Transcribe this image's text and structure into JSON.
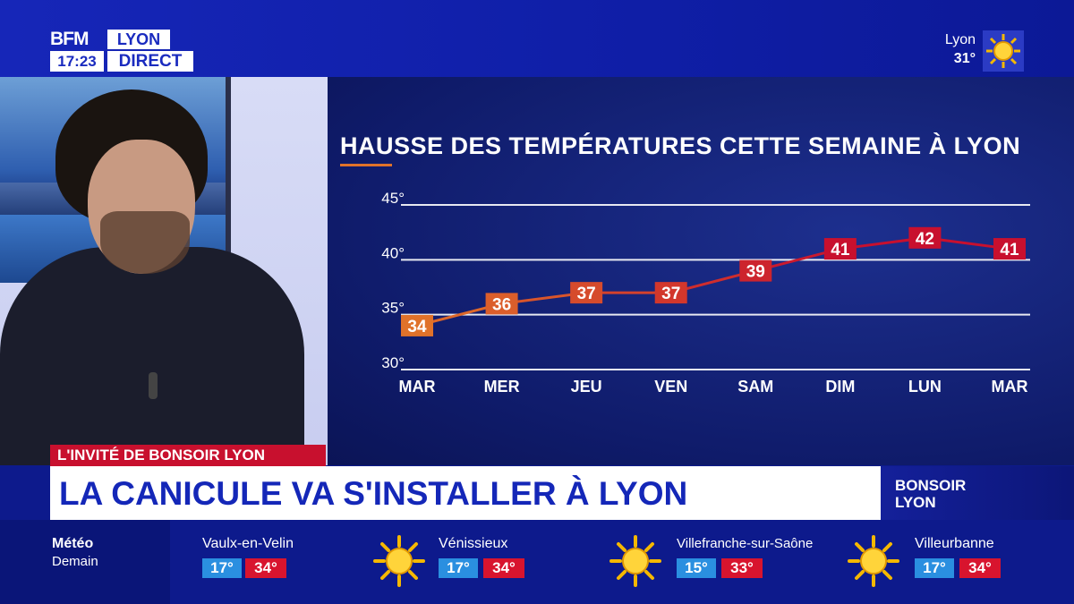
{
  "channel": {
    "brand": "BFM",
    "region": "LYON",
    "time": "17:23",
    "status": "DIRECT"
  },
  "top_weather": {
    "city": "Lyon",
    "temp": "31°",
    "icon": "sun-icon"
  },
  "lower_third": {
    "tag": "L'INVITÉ DE BONSOIR LYON",
    "headline": "LA CANICULE VA S'INSTALLER À LYON",
    "show_line1": "BONSOIR",
    "show_line2": "LYON"
  },
  "ticker": {
    "label_title": "Météo",
    "label_sub": "Demain",
    "items": [
      {
        "city": "Vaulx-en-Velin",
        "min": "17°",
        "max": "34°",
        "icon": "sun-icon"
      },
      {
        "city": "Vénissieux",
        "min": "17°",
        "max": "34°",
        "icon": "sun-icon"
      },
      {
        "city": "Villefranche-sur-Saône",
        "min": "15°",
        "max": "33°",
        "icon": "sun-icon"
      },
      {
        "city": "Villeurbanne",
        "min": "17°",
        "max": "34°",
        "icon": "sun-icon"
      }
    ]
  },
  "colors": {
    "background_blue": "#0d1a8c",
    "headline_blue": "#1427b8",
    "tag_red": "#c8102e",
    "min_temp_blue": "#2a8fe0",
    "max_temp_red": "#d8142e",
    "line_orange": "#e0722a",
    "line_red": "#c8102e"
  },
  "chart_data": {
    "type": "line",
    "title": "HAUSSE DES TEMPÉRATURES CETTE SEMAINE À LYON",
    "categories": [
      "MAR",
      "MER",
      "JEU",
      "VEN",
      "SAM",
      "DIM",
      "LUN",
      "MAR"
    ],
    "series": [
      {
        "values": [
          34,
          36,
          37,
          37,
          39,
          41,
          42,
          41
        ]
      }
    ],
    "yticks": [
      "30°",
      "35°",
      "40°",
      "45°"
    ],
    "ytick_values": [
      30,
      35,
      40,
      45
    ],
    "ylim": [
      30,
      45
    ],
    "grid": true,
    "legend": "none"
  }
}
